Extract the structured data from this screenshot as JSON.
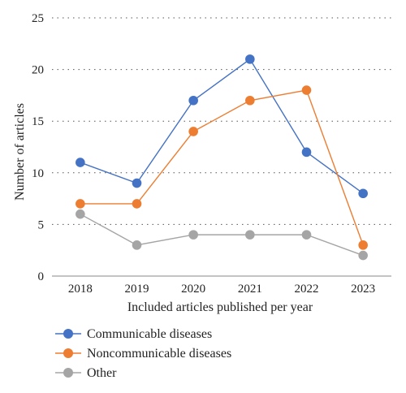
{
  "chart_data": {
    "type": "line",
    "categories": [
      "2018",
      "2019",
      "2020",
      "2021",
      "2022",
      "2023"
    ],
    "series": [
      {
        "name": "Communicable diseases",
        "color": "#4472C4",
        "values": [
          11,
          9,
          17,
          21,
          12,
          8
        ]
      },
      {
        "name": "Noncommunicable diseases",
        "color": "#ED7D31",
        "values": [
          7,
          7,
          14,
          17,
          18,
          3
        ]
      },
      {
        "name": "Other",
        "color": "#A5A5A5",
        "values": [
          6,
          3,
          4,
          4,
          4,
          2
        ]
      }
    ],
    "xlabel": "Included articles published per year",
    "ylabel": "Number of articles",
    "ylim": [
      0,
      25
    ],
    "yticks": [
      "0",
      "5",
      "10",
      "15",
      "20",
      "25"
    ],
    "grid": "horizontal dotted",
    "legend_position": "bottom-left"
  }
}
